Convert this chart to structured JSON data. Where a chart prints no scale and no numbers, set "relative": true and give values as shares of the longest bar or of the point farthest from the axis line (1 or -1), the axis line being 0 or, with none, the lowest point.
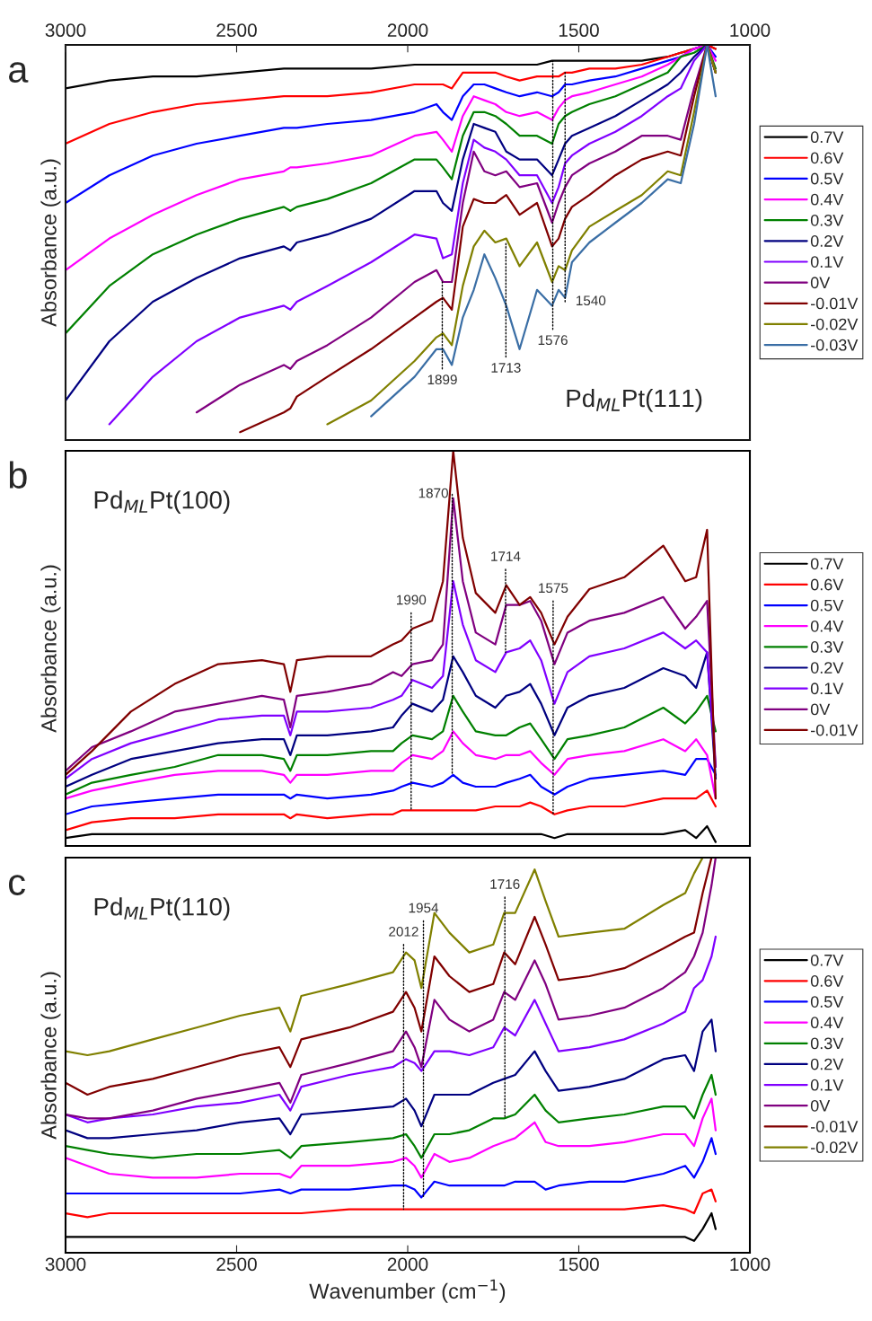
{
  "chart_data": [
    {
      "type": "line",
      "title": "a",
      "ylabel": "Absorbance (a.u.)",
      "relative": true,
      "legend": "right",
      "grid": false,
      "xlim": [
        3000,
        1000
      ],
      "x2lim": [
        3000,
        1000
      ],
      "x2ticks": [
        3000,
        2500,
        2000,
        1500,
        1000
      ],
      "tick_labels": false,
      "x": [
        3000,
        2872,
        2745,
        2617,
        2490,
        2362,
        2343,
        2324,
        2235,
        2107,
        1980,
        1916,
        1897,
        1871,
        1839,
        1807,
        1776,
        1744,
        1712,
        1673,
        1622,
        1578,
        1559,
        1540,
        1520,
        1469,
        1393,
        1316,
        1240,
        1202,
        1163,
        1125,
        1100
      ],
      "series": [
        {
          "name": "0.7V",
          "color": "#000000",
          "values": [
            0.89,
            0.91,
            0.92,
            0.92,
            0.93,
            0.94,
            0.94,
            0.94,
            0.94,
            0.94,
            0.95,
            0.95,
            0.95,
            0.95,
            0.95,
            0.95,
            0.95,
            0.95,
            0.95,
            0.95,
            0.95,
            0.96,
            0.96,
            0.96,
            0.96,
            0.96,
            0.96,
            0.96,
            0.97,
            0.98,
            0.99,
            1.0,
            0.99
          ]
        },
        {
          "name": "0.6V",
          "color": "#ff0000",
          "values": [
            0.75,
            0.8,
            0.83,
            0.85,
            0.86,
            0.87,
            0.87,
            0.87,
            0.87,
            0.88,
            0.9,
            0.9,
            0.9,
            0.89,
            0.93,
            0.93,
            0.93,
            0.93,
            0.92,
            0.91,
            0.92,
            0.92,
            0.92,
            0.93,
            0.93,
            0.94,
            0.94,
            0.95,
            0.97,
            0.98,
            0.99,
            1.0,
            0.99
          ]
        },
        {
          "name": "0.5V",
          "color": "#0000ff",
          "values": [
            0.6,
            0.67,
            0.72,
            0.75,
            0.77,
            0.79,
            0.79,
            0.79,
            0.8,
            0.81,
            0.83,
            0.85,
            0.83,
            0.81,
            0.87,
            0.9,
            0.9,
            0.89,
            0.88,
            0.87,
            0.88,
            0.87,
            0.88,
            0.9,
            0.9,
            0.91,
            0.92,
            0.94,
            0.96,
            0.97,
            0.99,
            1.0,
            0.97
          ]
        },
        {
          "name": "0.4V",
          "color": "#ff00ff",
          "values": [
            0.43,
            0.51,
            0.57,
            0.62,
            0.66,
            0.68,
            0.69,
            0.69,
            0.7,
            0.72,
            0.77,
            0.78,
            0.76,
            0.73,
            0.82,
            0.87,
            0.86,
            0.85,
            0.83,
            0.82,
            0.83,
            0.81,
            0.84,
            0.86,
            0.87,
            0.88,
            0.9,
            0.92,
            0.95,
            0.97,
            0.99,
            1.0,
            0.96
          ]
        },
        {
          "name": "0.3V",
          "color": "#008000",
          "values": [
            0.27,
            0.39,
            0.47,
            0.52,
            0.56,
            0.59,
            0.58,
            0.59,
            0.61,
            0.65,
            0.71,
            0.71,
            0.69,
            0.66,
            0.77,
            0.83,
            0.83,
            0.82,
            0.8,
            0.77,
            0.77,
            0.75,
            0.8,
            0.82,
            0.83,
            0.85,
            0.87,
            0.9,
            0.93,
            0.97,
            0.98,
            1.0,
            0.94
          ]
        },
        {
          "name": "0.2V",
          "color": "#000080",
          "values": [
            0.1,
            0.25,
            0.35,
            0.41,
            0.46,
            0.49,
            0.48,
            0.5,
            0.52,
            0.56,
            0.63,
            0.63,
            0.6,
            0.58,
            0.71,
            0.8,
            0.79,
            0.78,
            0.73,
            0.71,
            0.71,
            0.67,
            0.71,
            0.75,
            0.77,
            0.79,
            0.82,
            0.86,
            0.9,
            0.93,
            0.97,
            1.0,
            0.93
          ]
        },
        {
          "name": "0.1V",
          "color": "#8000ff",
          "values": [
            null,
            0.04,
            0.16,
            0.25,
            0.31,
            0.34,
            0.33,
            0.35,
            0.39,
            0.45,
            0.52,
            0.51,
            0.46,
            0.47,
            0.65,
            0.76,
            0.74,
            0.73,
            0.71,
            0.67,
            0.67,
            0.6,
            0.64,
            0.7,
            0.72,
            0.75,
            0.78,
            0.82,
            0.87,
            0.89,
            0.96,
            1.0,
            0.93
          ]
        },
        {
          "name": "0V",
          "color": "#800080",
          "values": [
            null,
            null,
            null,
            0.07,
            0.14,
            0.19,
            0.18,
            0.2,
            0.24,
            0.31,
            0.4,
            0.43,
            0.4,
            0.4,
            0.6,
            0.73,
            0.68,
            0.67,
            0.68,
            0.64,
            0.65,
            0.55,
            0.6,
            0.64,
            0.67,
            0.7,
            0.73,
            0.77,
            0.77,
            0.76,
            0.89,
            1.0,
            0.93
          ]
        },
        {
          "name": "-0.01V",
          "color": "#800000",
          "values": [
            null,
            null,
            null,
            null,
            0.02,
            0.07,
            0.08,
            0.11,
            0.16,
            0.23,
            0.31,
            0.35,
            0.36,
            0.33,
            0.54,
            0.61,
            0.6,
            0.6,
            0.62,
            0.57,
            0.6,
            0.49,
            0.51,
            0.56,
            0.59,
            0.62,
            0.67,
            0.71,
            0.73,
            0.72,
            0.87,
            1.0,
            0.93
          ]
        },
        {
          "name": "-0.02V",
          "color": "#808000",
          "values": [
            null,
            null,
            null,
            null,
            null,
            null,
            null,
            null,
            0.04,
            0.1,
            0.2,
            0.26,
            0.27,
            0.24,
            0.39,
            0.49,
            0.53,
            0.5,
            0.51,
            0.44,
            0.5,
            0.4,
            0.44,
            0.43,
            0.48,
            0.54,
            0.58,
            0.62,
            0.68,
            0.67,
            0.83,
            1.0,
            0.93
          ]
        },
        {
          "name": "-0.03V",
          "color": "#3a6ea5",
          "values": [
            null,
            null,
            null,
            null,
            null,
            null,
            null,
            null,
            null,
            0.06,
            0.16,
            0.23,
            0.23,
            0.19,
            0.31,
            0.38,
            0.47,
            0.41,
            0.34,
            0.23,
            0.38,
            0.34,
            0.38,
            0.36,
            0.45,
            0.5,
            0.55,
            0.6,
            0.66,
            0.65,
            0.8,
            1.0,
            0.87
          ]
        }
      ],
      "annotations": [
        "Pd$_{ML}$Pt(111)",
        {
          "text": "1899",
          "x": 1899,
          "y": 0.4
        },
        {
          "text": "1713",
          "x": 1713,
          "y": 0.5
        },
        {
          "text": "1576",
          "x": 1576,
          "y": 0.96
        },
        {
          "text": "1540",
          "x": 1540,
          "y": 0.93
        }
      ]
    },
    {
      "type": "line",
      "title": "b",
      "ylabel": "Absorbance (a.u.)",
      "relative": true,
      "legend": "right",
      "grid": false,
      "xlim": [
        3000,
        1000
      ],
      "tick_labels": false,
      "x": [
        3000,
        2923,
        2809,
        2681,
        2554,
        2426,
        2362,
        2343,
        2324,
        2235,
        2107,
        2043,
        2018,
        1986,
        1929,
        1897,
        1867,
        1839,
        1801,
        1744,
        1712,
        1673,
        1642,
        1610,
        1571,
        1533,
        1469,
        1367,
        1253,
        1189,
        1157,
        1125,
        1100
      ],
      "series": [
        {
          "name": "0.7V",
          "color": "#000000",
          "values": [
            0.02,
            0.03,
            0.03,
            0.03,
            0.03,
            0.03,
            0.03,
            0.03,
            0.03,
            0.03,
            0.03,
            0.03,
            0.03,
            0.03,
            0.03,
            0.03,
            0.03,
            0.03,
            0.03,
            0.03,
            0.03,
            0.03,
            0.03,
            0.03,
            0.02,
            0.03,
            0.03,
            0.03,
            0.03,
            0.04,
            0.02,
            0.05,
            0.01
          ]
        },
        {
          "name": "0.6V",
          "color": "#ff0000",
          "values": [
            0.04,
            0.06,
            0.07,
            0.07,
            0.08,
            0.08,
            0.08,
            0.07,
            0.08,
            0.07,
            0.08,
            0.08,
            0.09,
            0.09,
            0.09,
            0.09,
            0.09,
            0.09,
            0.09,
            0.1,
            0.1,
            0.1,
            0.11,
            0.1,
            0.08,
            0.09,
            0.1,
            0.1,
            0.12,
            0.12,
            0.12,
            0.14,
            0.1
          ]
        },
        {
          "name": "0.5V",
          "color": "#0000ff",
          "values": [
            0.08,
            0.1,
            0.11,
            0.12,
            0.13,
            0.13,
            0.13,
            0.12,
            0.13,
            0.12,
            0.13,
            0.14,
            0.15,
            0.16,
            0.15,
            0.16,
            0.18,
            0.16,
            0.15,
            0.15,
            0.16,
            0.17,
            0.18,
            0.15,
            0.13,
            0.15,
            0.17,
            0.18,
            0.19,
            0.18,
            0.22,
            0.22,
            0.18
          ]
        },
        {
          "name": "0.4V",
          "color": "#ff00ff",
          "values": [
            0.12,
            0.14,
            0.16,
            0.18,
            0.19,
            0.19,
            0.18,
            0.16,
            0.18,
            0.18,
            0.19,
            0.19,
            0.21,
            0.23,
            0.22,
            0.24,
            0.29,
            0.26,
            0.23,
            0.22,
            0.23,
            0.23,
            0.24,
            0.21,
            0.18,
            0.22,
            0.23,
            0.24,
            0.27,
            0.24,
            0.27,
            0.23,
            0.12
          ]
        },
        {
          "name": "0.3V",
          "color": "#008000",
          "values": [
            0.13,
            0.16,
            0.18,
            0.2,
            0.23,
            0.23,
            0.22,
            0.19,
            0.23,
            0.23,
            0.24,
            0.24,
            0.26,
            0.28,
            0.27,
            0.29,
            0.38,
            0.34,
            0.29,
            0.28,
            0.28,
            0.3,
            0.31,
            0.27,
            0.22,
            0.27,
            0.28,
            0.3,
            0.35,
            0.31,
            0.34,
            0.38,
            0.29
          ]
        },
        {
          "name": "0.2V",
          "color": "#000080",
          "values": [
            0.15,
            0.18,
            0.22,
            0.24,
            0.26,
            0.27,
            0.27,
            0.23,
            0.28,
            0.28,
            0.29,
            0.3,
            0.33,
            0.36,
            0.34,
            0.37,
            0.48,
            0.44,
            0.38,
            0.35,
            0.38,
            0.39,
            0.41,
            0.36,
            0.28,
            0.35,
            0.38,
            0.4,
            0.45,
            0.43,
            0.4,
            0.49,
            0.17
          ]
        },
        {
          "name": "0.1V",
          "color": "#8000ff",
          "values": [
            0.17,
            0.22,
            0.26,
            0.29,
            0.32,
            0.33,
            0.33,
            0.28,
            0.34,
            0.34,
            0.35,
            0.37,
            0.38,
            0.42,
            0.4,
            0.43,
            0.67,
            0.56,
            0.47,
            0.44,
            0.49,
            0.5,
            0.52,
            0.47,
            0.36,
            0.44,
            0.48,
            0.5,
            0.54,
            0.5,
            0.52,
            0.49,
            0.2
          ]
        },
        {
          "name": "0V",
          "color": "#800080",
          "values": [
            0.19,
            0.25,
            0.29,
            0.34,
            0.36,
            0.38,
            0.37,
            0.3,
            0.38,
            0.39,
            0.41,
            0.44,
            0.43,
            0.46,
            0.47,
            0.51,
            0.88,
            0.67,
            0.54,
            0.51,
            0.61,
            0.61,
            0.62,
            0.57,
            0.46,
            0.54,
            0.57,
            0.59,
            0.63,
            0.55,
            0.58,
            0.62,
            0.2
          ]
        },
        {
          "name": "-0.01V",
          "color": "#800000",
          "values": [
            0.18,
            0.24,
            0.34,
            0.41,
            0.46,
            0.47,
            0.46,
            0.39,
            0.47,
            0.48,
            0.48,
            0.51,
            0.52,
            0.55,
            0.57,
            0.67,
            1.0,
            0.78,
            0.64,
            0.59,
            0.66,
            0.61,
            0.63,
            0.59,
            0.51,
            0.58,
            0.65,
            0.68,
            0.76,
            0.67,
            0.68,
            0.8,
            0.12
          ]
        }
      ],
      "annotations": [
        "Pd$_{ML}$Pt(100)",
        {
          "text": "1990",
          "x": 1990,
          "y": 0.09
        },
        {
          "text": "1870",
          "x": 1870,
          "y": 0.18
        },
        {
          "text": "1714",
          "x": 1714,
          "y": 0.49
        },
        {
          "text": "1575",
          "x": 1575,
          "y": 0.08
        }
      ]
    },
    {
      "type": "line",
      "title": "c",
      "xlabel": "Wavenumber (cm$^{−1}$)",
      "ylabel": "Absorbance (a.u.)",
      "relative": true,
      "legend": "right",
      "grid": false,
      "xlim": [
        3000,
        1000
      ],
      "xticks": [
        3000,
        2500,
        2000,
        1500,
        1000
      ],
      "tick_labels": "x",
      "x": [
        3000,
        2936,
        2872,
        2745,
        2617,
        2490,
        2375,
        2343,
        2311,
        2171,
        2043,
        2005,
        1980,
        1960,
        1922,
        1878,
        1820,
        1750,
        1718,
        1686,
        1629,
        1597,
        1559,
        1469,
        1367,
        1253,
        1189,
        1163,
        1138,
        1112,
        1100
      ],
      "series": [
        {
          "name": "0.7V",
          "color": "#000000",
          "values": [
            0.04,
            0.04,
            0.04,
            0.04,
            0.04,
            0.04,
            0.04,
            0.04,
            0.04,
            0.04,
            0.04,
            0.04,
            0.04,
            0.04,
            0.04,
            0.04,
            0.04,
            0.04,
            0.04,
            0.04,
            0.04,
            0.04,
            0.04,
            0.04,
            0.04,
            0.04,
            0.04,
            0.03,
            0.06,
            0.1,
            0.06
          ]
        },
        {
          "name": "0.6V",
          "color": "#ff0000",
          "values": [
            0.1,
            0.09,
            0.1,
            0.1,
            0.1,
            0.1,
            0.1,
            0.1,
            0.1,
            0.11,
            0.11,
            0.11,
            0.11,
            0.11,
            0.11,
            0.11,
            0.11,
            0.11,
            0.11,
            0.11,
            0.11,
            0.11,
            0.11,
            0.11,
            0.11,
            0.12,
            0.11,
            0.1,
            0.15,
            0.16,
            0.13
          ]
        },
        {
          "name": "0.5V",
          "color": "#0000ff",
          "values": [
            0.15,
            0.15,
            0.15,
            0.15,
            0.15,
            0.15,
            0.16,
            0.15,
            0.16,
            0.16,
            0.17,
            0.17,
            0.16,
            0.14,
            0.18,
            0.17,
            0.17,
            0.17,
            0.17,
            0.18,
            0.18,
            0.16,
            0.17,
            0.18,
            0.18,
            0.2,
            0.22,
            0.19,
            0.23,
            0.29,
            0.25
          ]
        },
        {
          "name": "0.4V",
          "color": "#ff00ff",
          "values": [
            0.24,
            0.22,
            0.2,
            0.19,
            0.19,
            0.2,
            0.2,
            0.19,
            0.22,
            0.22,
            0.23,
            0.24,
            0.22,
            0.19,
            0.25,
            0.23,
            0.24,
            0.27,
            0.28,
            0.29,
            0.33,
            0.28,
            0.27,
            0.27,
            0.28,
            0.3,
            0.3,
            0.27,
            0.34,
            0.39,
            0.31
          ]
        },
        {
          "name": "0.3V",
          "color": "#008000",
          "values": [
            0.27,
            0.26,
            0.25,
            0.24,
            0.25,
            0.25,
            0.26,
            0.24,
            0.27,
            0.28,
            0.29,
            0.3,
            0.27,
            0.24,
            0.3,
            0.3,
            0.31,
            0.34,
            0.34,
            0.35,
            0.4,
            0.36,
            0.33,
            0.34,
            0.35,
            0.37,
            0.37,
            0.34,
            0.4,
            0.45,
            0.4
          ]
        },
        {
          "name": "0.2V",
          "color": "#000080",
          "values": [
            0.31,
            0.29,
            0.29,
            0.3,
            0.31,
            0.33,
            0.34,
            0.3,
            0.35,
            0.36,
            0.37,
            0.39,
            0.36,
            0.32,
            0.4,
            0.4,
            0.4,
            0.43,
            0.44,
            0.45,
            0.51,
            0.46,
            0.41,
            0.42,
            0.44,
            0.49,
            0.5,
            0.46,
            0.56,
            0.59,
            0.51
          ]
        },
        {
          "name": "0.1V",
          "color": "#8000ff",
          "values": [
            0.35,
            0.33,
            0.34,
            0.35,
            0.37,
            0.38,
            0.4,
            0.36,
            0.42,
            0.45,
            0.47,
            0.49,
            0.48,
            0.46,
            0.51,
            0.51,
            0.5,
            0.52,
            0.57,
            0.55,
            0.64,
            0.58,
            0.51,
            0.52,
            0.54,
            0.58,
            0.61,
            0.67,
            0.69,
            0.75,
            0.8
          ]
        },
        {
          "name": "0V",
          "color": "#800080",
          "values": [
            0.35,
            0.34,
            0.34,
            0.36,
            0.39,
            0.41,
            0.43,
            0.38,
            0.45,
            0.48,
            0.51,
            0.56,
            0.52,
            0.47,
            0.64,
            0.59,
            0.56,
            0.59,
            0.66,
            0.64,
            0.74,
            0.68,
            0.59,
            0.6,
            0.62,
            0.67,
            0.71,
            0.75,
            0.81,
            0.93,
            1.0
          ]
        },
        {
          "name": "-0.01V",
          "color": "#800000",
          "values": [
            0.43,
            0.4,
            0.42,
            0.44,
            0.47,
            0.5,
            0.52,
            0.47,
            0.54,
            0.57,
            0.61,
            0.66,
            0.62,
            0.56,
            0.75,
            0.7,
            0.66,
            0.68,
            0.76,
            0.73,
            0.85,
            0.78,
            0.69,
            0.7,
            0.72,
            0.77,
            0.8,
            0.81,
            0.91,
            1.0,
            null
          ]
        },
        {
          "name": "-0.02V",
          "color": "#808000",
          "values": [
            0.51,
            0.5,
            0.51,
            0.54,
            0.57,
            0.6,
            0.62,
            0.56,
            0.65,
            0.68,
            0.71,
            0.76,
            0.74,
            0.67,
            0.86,
            0.81,
            0.76,
            0.78,
            0.86,
            0.86,
            0.97,
            0.89,
            0.8,
            0.81,
            0.82,
            0.88,
            0.91,
            0.96,
            1.0,
            null,
            null
          ]
        }
      ],
      "annotations": [
        "Pd$_{ML}$Pt(110)",
        {
          "text": "2012",
          "x": 2012,
          "y": 0.11
        },
        {
          "text": "1954",
          "x": 1954,
          "y": 0.14
        },
        {
          "text": "1716",
          "x": 1716,
          "y": 0.34
        }
      ]
    }
  ]
}
